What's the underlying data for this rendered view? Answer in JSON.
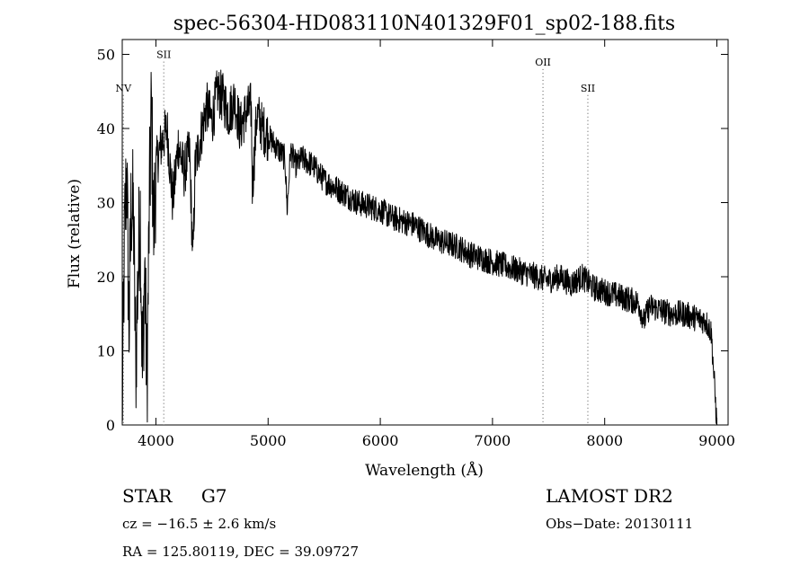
{
  "chart_data": {
    "type": "line",
    "title": "spec-56304-HD083110N401329F01_sp02-188.fits",
    "xlabel": "Wavelength (Å)",
    "ylabel": "Flux (relative)",
    "xlim": [
      3700,
      9100
    ],
    "ylim": [
      0,
      52
    ],
    "xticks": [
      4000,
      5000,
      6000,
      7000,
      8000,
      9000
    ],
    "yticks": [
      0,
      10,
      20,
      30,
      40,
      50
    ],
    "grid": false,
    "series": [
      {
        "x": [
          3700,
          3720,
          3740,
          3760,
          3780,
          3800,
          3820,
          3840,
          3860,
          3880,
          3900,
          3920,
          3940,
          3960,
          3980,
          4000,
          4050,
          4100,
          4150,
          4200,
          4250,
          4300,
          4330,
          4350,
          4400,
          4450,
          4500,
          4550,
          4600,
          4650,
          4700,
          4750,
          4800,
          4850,
          4860,
          4900,
          4950,
          5000,
          5050,
          5100,
          5150,
          5170,
          5200,
          5250,
          5300,
          5400,
          5500,
          5600,
          5700,
          5800,
          5900,
          6000,
          6100,
          6200,
          6300,
          6400,
          6500,
          6600,
          6700,
          6800,
          6900,
          7000,
          7100,
          7200,
          7300,
          7400,
          7500,
          7600,
          7700,
          7800,
          7900,
          8000,
          8100,
          8200,
          8300,
          8350,
          8400,
          8500,
          8600,
          8700,
          8800,
          8900,
          8950,
          9000
        ],
        "y": [
          1,
          25,
          35,
          12,
          30,
          28,
          8,
          20,
          30,
          6,
          22,
          5,
          28,
          43,
          26,
          35,
          38,
          40,
          30,
          38,
          34,
          37,
          22,
          35,
          39,
          43,
          41,
          45,
          44,
          42,
          44,
          40,
          42,
          43,
          32,
          42,
          40,
          39,
          38,
          37,
          36,
          29,
          37,
          35,
          36,
          35,
          33,
          32,
          31,
          30,
          29.5,
          29,
          28,
          27.5,
          27,
          26,
          25,
          24.5,
          24,
          23,
          22.5,
          22,
          21.5,
          21,
          20.5,
          20,
          19.5,
          20,
          19,
          20,
          18.5,
          18,
          17.5,
          17,
          16.5,
          14,
          16,
          15.5,
          15,
          15,
          14.5,
          14,
          12.5,
          0
        ]
      }
    ],
    "lines": [
      {
        "label": "NV",
        "x": 3710,
        "label_y": 45
      },
      {
        "label": "SII",
        "x": 4070,
        "label_y": 49.5
      },
      {
        "label": "OII",
        "x": 7450,
        "label_y": 48.5
      },
      {
        "label": "SII",
        "x": 7850,
        "label_y": 45
      }
    ]
  },
  "info": {
    "type_class": "STAR",
    "subclass": "G7",
    "survey": "LAMOST DR2",
    "cz": "cz = −16.5 ± 2.6 km/s",
    "obs_date": "Obs−Date: 20130111",
    "coords": "RA = 125.80119, DEC =  39.09727"
  }
}
